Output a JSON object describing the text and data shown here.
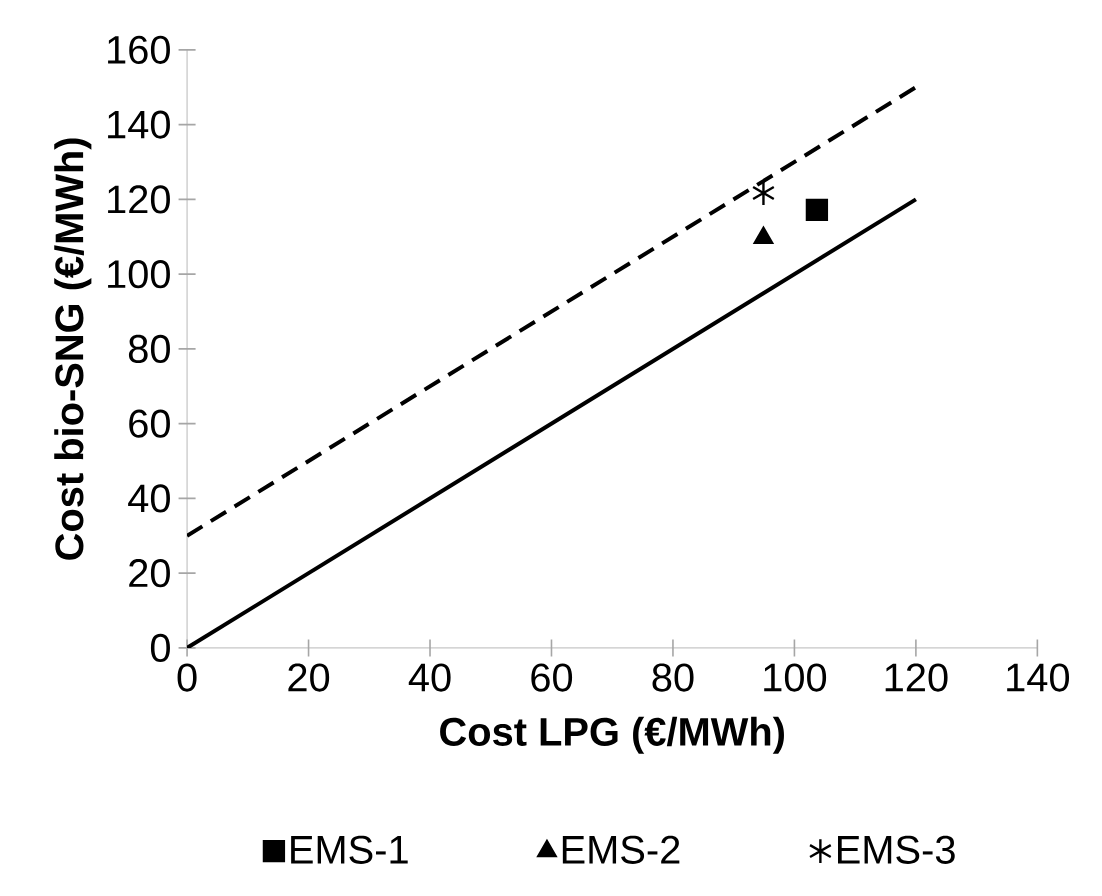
{
  "chart_data": {
    "type": "scatter",
    "xlabel": "Cost LPG (€/MWh)",
    "ylabel": "Cost bio-SNG (€/MWh)",
    "xlim": [
      0,
      140
    ],
    "ylim": [
      0,
      160
    ],
    "xticks": [
      0,
      20,
      40,
      60,
      80,
      100,
      120,
      140
    ],
    "yticks": [
      0,
      20,
      40,
      60,
      80,
      100,
      120,
      140,
      160
    ],
    "grid": false,
    "legend": "bottom",
    "series": [
      {
        "type": "line",
        "x": [
          0,
          120
        ],
        "values": [
          0,
          120
        ],
        "color": "#000000",
        "line_style": "solid",
        "marker": "none"
      },
      {
        "type": "line",
        "x": [
          0,
          120
        ],
        "values": [
          30,
          150
        ],
        "color": "#000000",
        "line_style": "dashed",
        "marker": "none"
      },
      {
        "name": "EMS-1",
        "x": [
          103.7
        ],
        "values": [
          117.2
        ],
        "color": "#000000",
        "marker": "square"
      },
      {
        "name": "EMS-2",
        "x": [
          94.9
        ],
        "values": [
          109.7
        ],
        "color": "#000000",
        "marker": "triangle"
      },
      {
        "name": "EMS-3",
        "x": [
          94.9
        ],
        "values": [
          121.7
        ],
        "color": "#000000",
        "marker": "cross"
      }
    ]
  }
}
